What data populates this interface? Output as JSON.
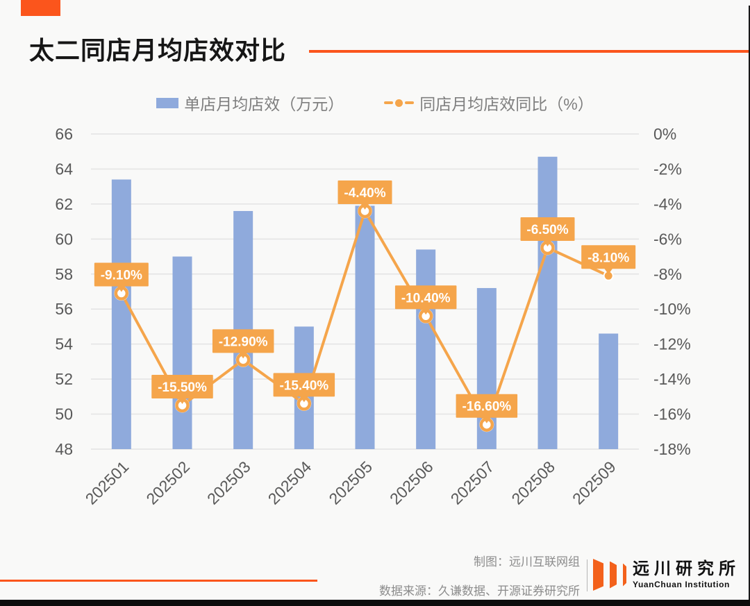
{
  "header": {
    "title": "太二同店月均店效对比"
  },
  "legend": {
    "items": [
      {
        "label": "单店月均店效（万元）",
        "marker": "bar-swatch",
        "color": "#8FAADC"
      },
      {
        "label": "同店月均店效同比（%）",
        "marker": "dash-dot-line-swatch",
        "color": "#F5A54B"
      }
    ]
  },
  "chart_data": {
    "type": "bar",
    "subtype": "combo-bar-line-dual-axis",
    "title": "太二同店月均店效对比",
    "categories": [
      "202501",
      "202502",
      "202503",
      "202504",
      "202505",
      "202506",
      "202507",
      "202508",
      "202509"
    ],
    "series": [
      {
        "name": "单店月均店效（万元）",
        "type": "bar",
        "axis": "left",
        "color": "#8FAADC",
        "values": [
          63.4,
          59.0,
          61.6,
          55.0,
          61.9,
          59.4,
          57.2,
          64.7,
          54.6
        ]
      },
      {
        "name": "同店月均店效同比（%）",
        "type": "line",
        "axis": "right",
        "color": "#F5A54B",
        "values": [
          -9.1,
          -15.5,
          -12.9,
          -15.4,
          -4.4,
          -10.4,
          -16.6,
          -6.5,
          -8.1
        ],
        "point_labels": [
          "-9.10%",
          "-15.50%",
          "-12.90%",
          "-15.40%",
          "-4.40%",
          "-10.40%",
          "-16.60%",
          "-6.50%",
          "-8.10%"
        ]
      }
    ],
    "left_axis": {
      "min": 48,
      "max": 66,
      "step": 2,
      "ticks": [
        "66",
        "64",
        "62",
        "60",
        "58",
        "56",
        "54",
        "52",
        "50",
        "48"
      ]
    },
    "right_axis": {
      "min": -18,
      "max": 0,
      "step": 2,
      "ticks": [
        "0%",
        "-2%",
        "-4%",
        "-6%",
        "-8%",
        "-10%",
        "-12%",
        "-14%",
        "-16%",
        "-18%"
      ]
    },
    "grid": true,
    "legend_position": "top",
    "x_tick_rotation": -45
  },
  "footer": {
    "credit": "制图：远川互联网组",
    "source": "数据来源：久谦数据、开源证券研究所"
  },
  "logo": {
    "name_cn": "远川研究所",
    "name_en": "YuanChuan Institution"
  },
  "colors": {
    "accent": "#FB551C",
    "bar": "#8FAADC",
    "line": "#F5A54B",
    "label_box": "#F5A54B",
    "grid": "#e3e3e3",
    "tick_text": "#595959",
    "legend_text": "#7f7f7f",
    "footer_text": "#8c8c8c",
    "logo_orange": "#F3611B"
  }
}
